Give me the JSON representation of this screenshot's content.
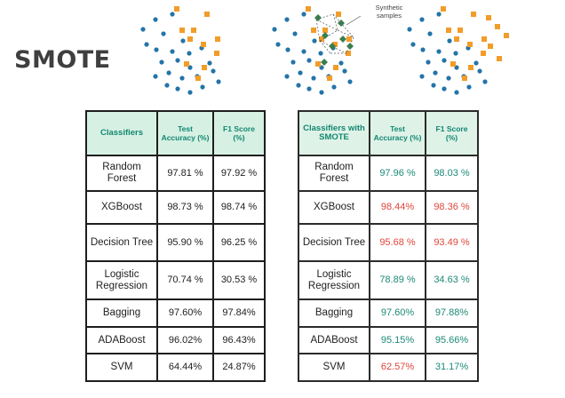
{
  "title": "SMOTE",
  "synthetic_label": "Synthetic\nsamples",
  "colors": {
    "header_bg": "#d7f0e4",
    "header_text": "#118770",
    "teal": "#1d8a78",
    "red": "#e0453b",
    "blue_dot": "#2474a8",
    "orange_dot": "#f29c2a",
    "synthetic": "#3c7d4e"
  },
  "table_left": {
    "headers": [
      "Classifiers",
      "Test Accuracy (%)",
      "F1 Score (%)"
    ],
    "rows": [
      {
        "name": "Random Forest",
        "acc": "97.81 %",
        "f1": "97.92 %"
      },
      {
        "name": "XGBoost",
        "acc": "98.73 %",
        "f1": "98.74 %"
      },
      {
        "name": "Decision Tree",
        "acc": "95.90 %",
        "f1": "96.25 %"
      },
      {
        "name": "Logistic Regression",
        "acc": "70.74 %",
        "f1": "30.53 %"
      },
      {
        "name": "Bagging",
        "acc": "97.60%",
        "f1": "97.84%"
      },
      {
        "name": "ADABoost",
        "acc": "96.02%",
        "f1": "96.43%"
      },
      {
        "name": "SVM",
        "acc": "64.44%",
        "f1": "24.87%"
      }
    ]
  },
  "table_right": {
    "headers": [
      "Classifiers with SMOTE",
      "Test Accuracy (%)",
      "F1 Score (%)"
    ],
    "rows": [
      {
        "name": "Random Forest",
        "acc": "97.96 %",
        "f1": "98.03 %",
        "acc_color": "teal",
        "f1_color": "teal"
      },
      {
        "name": "XGBoost",
        "acc": "98.44%",
        "f1": "98.36 %",
        "acc_color": "red",
        "f1_color": "red"
      },
      {
        "name": "Decision Tree",
        "acc": "95.68 %",
        "f1": "93.49 %",
        "acc_color": "red",
        "f1_color": "red"
      },
      {
        "name": "Logistic Regression",
        "acc": "78.89 %",
        "f1": "34.63 %",
        "acc_color": "teal",
        "f1_color": "teal"
      },
      {
        "name": "Bagging",
        "acc": "97.60%",
        "f1": "97.88%",
        "acc_color": "teal",
        "f1_color": "teal"
      },
      {
        "name": "ADABoost",
        "acc": "95.15%",
        "f1": "95.66%",
        "acc_color": "teal",
        "f1_color": "teal"
      },
      {
        "name": "SVM",
        "acc": "62.57%",
        "f1": "31.17%",
        "acc_color": "red",
        "f1_color": "teal"
      }
    ]
  }
}
